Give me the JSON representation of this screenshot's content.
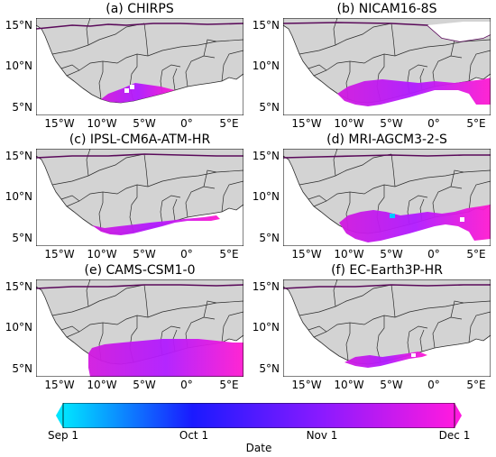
{
  "panels": [
    {
      "title": "(a) CHIRPS"
    },
    {
      "title": "(b) NICAM16-8S"
    },
    {
      "title": "(c) IPSL-CM6A-ATM-HR"
    },
    {
      "title": "(d) MRI-AGCM3-2-S"
    },
    {
      "title": "(e) CAMS-CSM1-0"
    },
    {
      "title": "(f) EC-Earth3P-HR"
    }
  ],
  "axes": {
    "yticks": [
      "15°N",
      "10°N",
      "5°N"
    ],
    "xticks": [
      "15°W",
      "10°W",
      "5°W",
      "0°",
      "5°E"
    ]
  },
  "colorbar": {
    "label": "Date",
    "ticks": [
      "Sep 1",
      "Oct 1",
      "Nov 1",
      "Dec 1"
    ],
    "colors": [
      "#00e5ff",
      "#1a1aff",
      "#8a1aff",
      "#ff1adf"
    ]
  },
  "colors": {
    "land": "#d3d3d3",
    "ocean": "#ffffff",
    "border": "#2b2b2b",
    "contour": "#5a0a5a"
  }
}
